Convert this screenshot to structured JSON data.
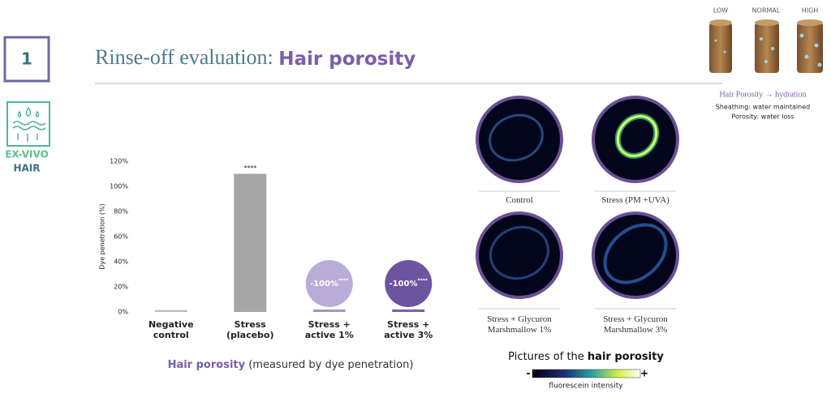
{
  "slide_number": "1",
  "title": {
    "plain": "Rinse-off evaluation: ",
    "bold": "Hair porosity"
  },
  "side_label": {
    "line1": "EX-VIVO",
    "line2": "HAIR"
  },
  "porosity_legend": {
    "levels": [
      "LOW",
      "NORMAL",
      "HIGH"
    ],
    "heading": "Hair Porosity → hydration",
    "note1": "Sheathing: water maintained",
    "note2": "Porosity: water loss"
  },
  "chart_data": {
    "type": "bar",
    "y_label": "Dye penetration (%)",
    "categories": [
      "Negative control",
      "Stress (placebo)",
      "Stress + active 1%",
      "Stress + active 3%"
    ],
    "values": [
      1.5,
      110,
      2,
      2
    ],
    "colors": [
      "#bdbdbd",
      "#a6a6a6",
      "#a595c8",
      "#7a62a8"
    ],
    "significance": [
      null,
      "****",
      null,
      null
    ],
    "reduction_labels": [
      null,
      null,
      "-100%",
      "-100%"
    ],
    "reduction_significance": [
      null,
      null,
      "****",
      "****"
    ],
    "reduction_colors": [
      null,
      null,
      "#b9acd8",
      "#6d54a0"
    ],
    "ylim": [
      0,
      120
    ],
    "yticks": [
      {
        "value": 0,
        "label": "0%"
      },
      {
        "value": 20,
        "label": "20%"
      },
      {
        "value": 40,
        "label": "40%"
      },
      {
        "value": 60,
        "label": "60%"
      },
      {
        "value": 80,
        "label": "80%"
      },
      {
        "value": 100,
        "label": "100%"
      },
      {
        "value": 120,
        "label": "120%"
      }
    ],
    "grid": false,
    "caption": {
      "bold": "Hair porosity",
      "rest": " (measured by dye penetration)"
    }
  },
  "pictures": {
    "captions": [
      "Control",
      "Stress (PM +UVA)",
      "Stress + Glycuron Marshmallow 1%",
      "Stress + Glycuron Marshmallow 3%"
    ],
    "heading": {
      "plain": "Pictures of the ",
      "bold": "hair porosity"
    },
    "scale": {
      "low": "-",
      "high": "+",
      "label": "fluorescein intensity"
    }
  }
}
